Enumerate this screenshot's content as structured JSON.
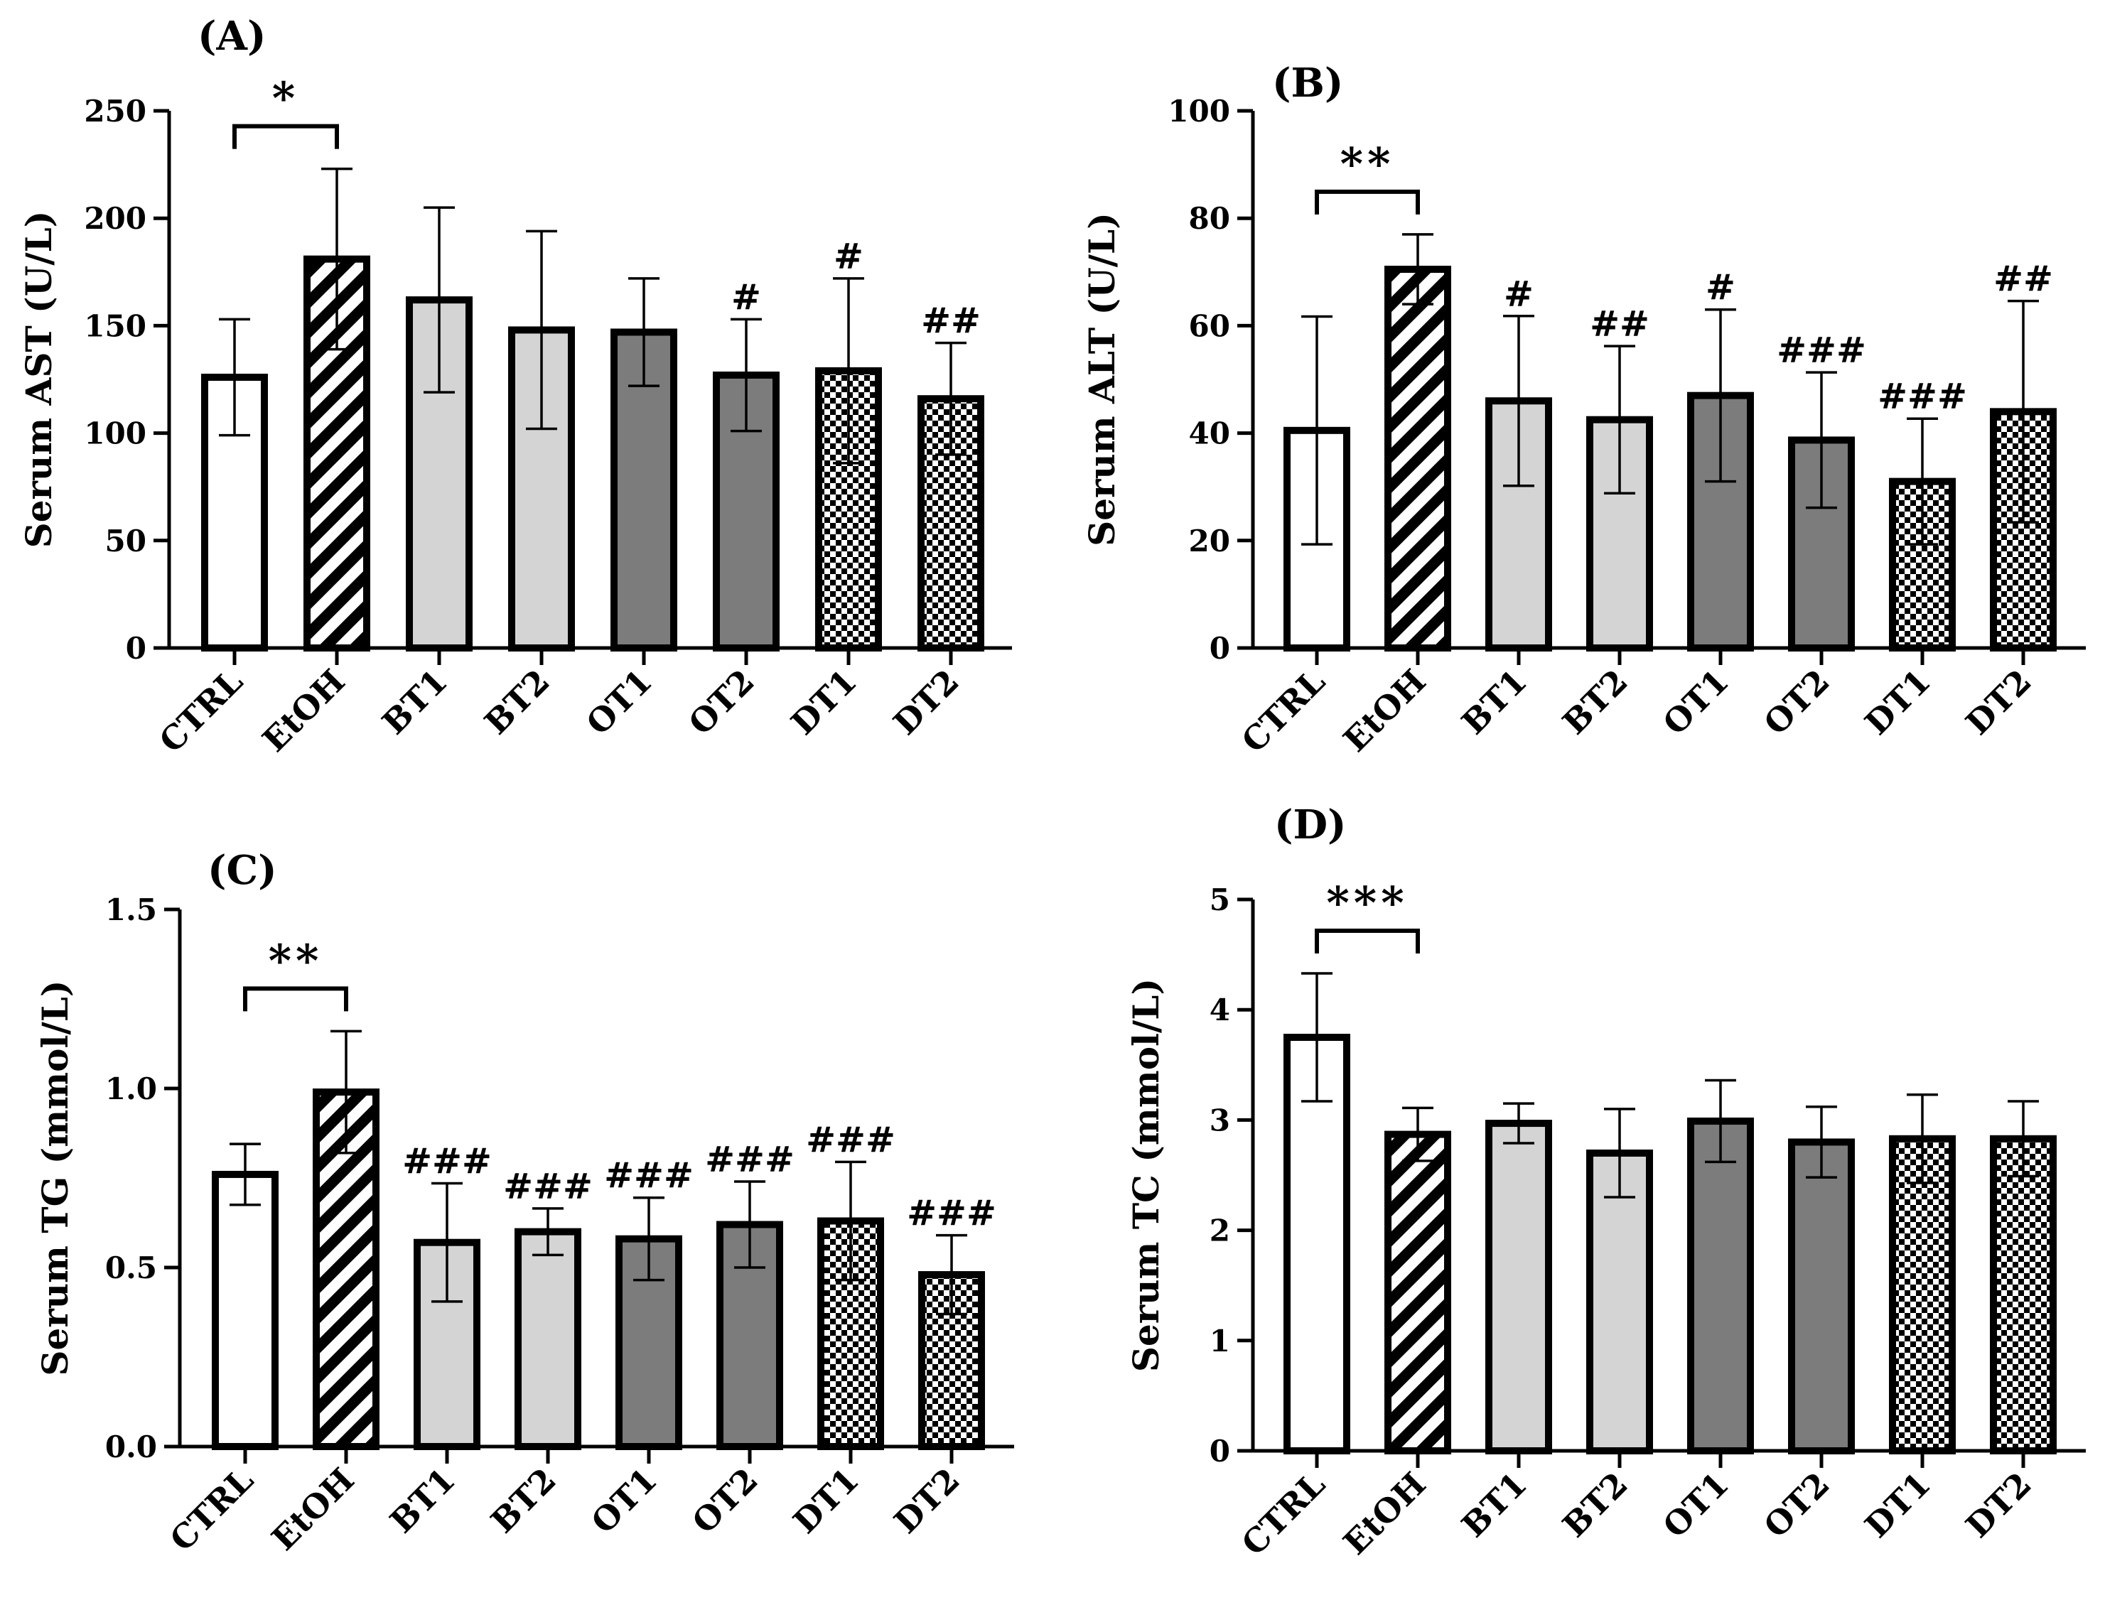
{
  "figure": {
    "description_free": true
  },
  "colors": {
    "ctrl_fill": "#ffffff",
    "light_fill": "#d4d4d4",
    "dark_fill": "#7c7c7c",
    "outline": "#000000"
  },
  "chart_data": [
    {
      "type": "bar",
      "panel_label": "(A)",
      "ylabel": "Serum AST (U/L)",
      "ylim": [
        0,
        250
      ],
      "yticks": [
        "0",
        "50",
        "100",
        "150",
        "200",
        "250"
      ],
      "categories": [
        "CTRL",
        "EtOH",
        "BT1",
        "BT2",
        "OT1",
        "OT2",
        "DT1",
        "DT2"
      ],
      "patterns": [
        "white",
        "hatch",
        "light",
        "light",
        "dark",
        "dark",
        "check",
        "check"
      ],
      "values": [
        126,
        181,
        162,
        148,
        147,
        127,
        129,
        116
      ],
      "errors": [
        27,
        42,
        43,
        46,
        25,
        26,
        43,
        26
      ],
      "marks": [
        "",
        "",
        "",
        "",
        "",
        "#",
        "#",
        "##"
      ],
      "bracket": {
        "from": 0,
        "to": 1,
        "label": "*"
      }
    },
    {
      "type": "bar",
      "panel_label": "(B)",
      "ylabel": "Serum ALT (U/L)",
      "ylim": [
        0,
        100
      ],
      "yticks": [
        "0",
        "20",
        "40",
        "60",
        "80",
        "100"
      ],
      "categories": [
        "CTRL",
        "EtOH",
        "BT1",
        "BT2",
        "OT1",
        "OT2",
        "DT1",
        "DT2"
      ],
      "patterns": [
        "white",
        "hatch",
        "light",
        "light",
        "dark",
        "dark",
        "check",
        "check"
      ],
      "values": [
        40.5,
        70.5,
        46,
        42.5,
        47,
        38.7,
        31,
        44
      ],
      "errors": [
        21.2,
        6.5,
        15.8,
        13.7,
        16,
        12.6,
        11.7,
        20.6
      ],
      "marks": [
        "",
        "",
        "#",
        "##",
        "#",
        "###",
        "###",
        "##"
      ],
      "bracket": {
        "from": 0,
        "to": 1,
        "label": "**"
      }
    },
    {
      "type": "bar",
      "panel_label": "(C)",
      "ylabel": "Serum TG (mmol/L)",
      "ylim": [
        0,
        1.5
      ],
      "yticks": [
        "0.0",
        "0.5",
        "1.0",
        "1.5"
      ],
      "categories": [
        "CTRL",
        "EtOH",
        "BT1",
        "BT2",
        "OT1",
        "OT2",
        "DT1",
        "DT2"
      ],
      "patterns": [
        "white",
        "hatch",
        "light",
        "light",
        "dark",
        "dark",
        "check",
        "check"
      ],
      "values": [
        0.76,
        0.99,
        0.57,
        0.6,
        0.58,
        0.62,
        0.63,
        0.48
      ],
      "errors": [
        0.085,
        0.17,
        0.165,
        0.065,
        0.115,
        0.12,
        0.165,
        0.11
      ],
      "marks": [
        "",
        "",
        "###",
        "###",
        "###",
        "###",
        "###",
        "###"
      ],
      "bracket": {
        "from": 0,
        "to": 1,
        "label": "**"
      }
    },
    {
      "type": "bar",
      "panel_label": "(D)",
      "ylabel": "Serum TC (mmol/L)",
      "ylim": [
        0,
        5
      ],
      "yticks": [
        "0",
        "1",
        "2",
        "3",
        "4",
        "5"
      ],
      "categories": [
        "CTRL",
        "EtOH",
        "BT1",
        "BT2",
        "OT1",
        "OT2",
        "DT1",
        "DT2"
      ],
      "patterns": [
        "white",
        "hatch",
        "light",
        "light",
        "dark",
        "dark",
        "check",
        "check"
      ],
      "values": [
        3.75,
        2.87,
        2.97,
        2.7,
        2.99,
        2.8,
        2.83,
        2.83
      ],
      "errors": [
        0.58,
        0.24,
        0.18,
        0.4,
        0.37,
        0.32,
        0.4,
        0.34
      ],
      "marks": [
        "",
        "",
        "",
        "",
        "",
        "",
        "",
        ""
      ],
      "bracket": {
        "from": 0,
        "to": 1,
        "label": "***"
      }
    }
  ]
}
